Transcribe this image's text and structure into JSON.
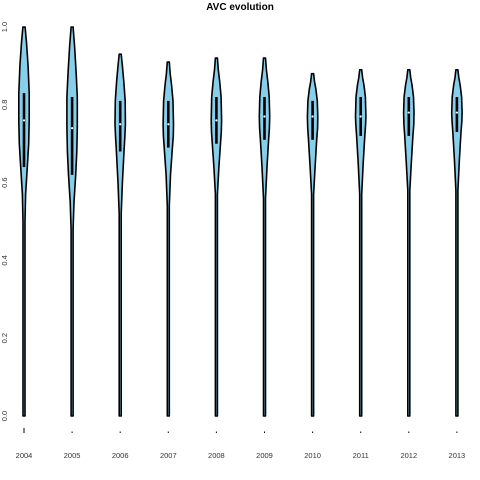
{
  "chart_data": {
    "type": "violin",
    "title": "AVC evolution",
    "xlabel": "",
    "ylabel": "",
    "categories": [
      "2004",
      "2005",
      "2006",
      "2007",
      "2008",
      "2009",
      "2010",
      "2011",
      "2012",
      "2013"
    ],
    "ylim": [
      0,
      1
    ],
    "yticks": [
      "0.0",
      "0.2",
      "0.4",
      "0.6",
      "0.8",
      "1.0"
    ],
    "grid": false,
    "legend": "none",
    "fill_color": "#87ceeb",
    "series": [
      {
        "category": "2004",
        "min": 0.0,
        "q1": 0.64,
        "median": 0.76,
        "q3": 0.83,
        "max": 1.0,
        "density": {
          "y": [
            0.0,
            0.45,
            0.5,
            0.57,
            0.64,
            0.7,
            0.76,
            0.83,
            0.9,
            0.96,
            1.0
          ],
          "w": [
            0.04,
            0.05,
            0.12,
            0.3,
            0.6,
            0.85,
            0.95,
            0.95,
            0.75,
            0.45,
            0.2
          ]
        }
      },
      {
        "category": "2005",
        "min": 0.0,
        "q1": 0.62,
        "median": 0.74,
        "q3": 0.82,
        "max": 1.0,
        "density": {
          "y": [
            0.0,
            0.46,
            0.48,
            0.55,
            0.62,
            0.68,
            0.74,
            0.82,
            0.88,
            0.95,
            1.0
          ],
          "w": [
            0.04,
            0.05,
            0.12,
            0.35,
            0.65,
            0.85,
            0.95,
            0.95,
            0.75,
            0.45,
            0.15
          ]
        }
      },
      {
        "category": "2006",
        "min": 0.0,
        "q1": 0.68,
        "median": 0.75,
        "q3": 0.81,
        "max": 0.93,
        "density": {
          "y": [
            0.0,
            0.5,
            0.52,
            0.6,
            0.68,
            0.72,
            0.75,
            0.81,
            0.86,
            0.9,
            0.93
          ],
          "w": [
            0.04,
            0.05,
            0.12,
            0.4,
            0.7,
            0.85,
            0.95,
            0.9,
            0.65,
            0.4,
            0.12
          ]
        }
      },
      {
        "category": "2007",
        "min": 0.0,
        "q1": 0.69,
        "median": 0.75,
        "q3": 0.81,
        "max": 0.91,
        "density": {
          "y": [
            0.0,
            0.52,
            0.54,
            0.62,
            0.69,
            0.72,
            0.75,
            0.81,
            0.85,
            0.88,
            0.91
          ],
          "w": [
            0.04,
            0.05,
            0.12,
            0.4,
            0.75,
            0.9,
            0.95,
            0.85,
            0.6,
            0.35,
            0.12
          ]
        }
      },
      {
        "category": "2008",
        "min": 0.0,
        "q1": 0.7,
        "median": 0.76,
        "q3": 0.82,
        "max": 0.92,
        "density": {
          "y": [
            0.0,
            0.55,
            0.57,
            0.64,
            0.7,
            0.73,
            0.76,
            0.82,
            0.86,
            0.89,
            0.92
          ],
          "w": [
            0.04,
            0.05,
            0.12,
            0.45,
            0.75,
            0.9,
            0.95,
            0.85,
            0.6,
            0.35,
            0.12
          ]
        }
      },
      {
        "category": "2009",
        "min": 0.0,
        "q1": 0.71,
        "median": 0.77,
        "q3": 0.82,
        "max": 0.92,
        "density": {
          "y": [
            0.0,
            0.54,
            0.56,
            0.64,
            0.71,
            0.74,
            0.77,
            0.82,
            0.86,
            0.89,
            0.92
          ],
          "w": [
            0.04,
            0.05,
            0.12,
            0.45,
            0.75,
            0.9,
            0.95,
            0.85,
            0.6,
            0.35,
            0.12
          ]
        }
      },
      {
        "category": "2010",
        "min": 0.0,
        "q1": 0.71,
        "median": 0.77,
        "q3": 0.81,
        "max": 0.88,
        "density": {
          "y": [
            0.0,
            0.55,
            0.57,
            0.64,
            0.71,
            0.74,
            0.77,
            0.81,
            0.84,
            0.86,
            0.88
          ],
          "w": [
            0.04,
            0.05,
            0.12,
            0.45,
            0.75,
            0.9,
            0.95,
            0.85,
            0.6,
            0.35,
            0.12
          ]
        }
      },
      {
        "category": "2011",
        "min": 0.0,
        "q1": 0.72,
        "median": 0.77,
        "q3": 0.82,
        "max": 0.89,
        "density": {
          "y": [
            0.0,
            0.55,
            0.57,
            0.65,
            0.72,
            0.75,
            0.77,
            0.82,
            0.85,
            0.87,
            0.89
          ],
          "w": [
            0.04,
            0.05,
            0.12,
            0.45,
            0.75,
            0.9,
            0.95,
            0.85,
            0.6,
            0.35,
            0.12
          ]
        }
      },
      {
        "category": "2012",
        "min": 0.0,
        "q1": 0.72,
        "median": 0.78,
        "q3": 0.82,
        "max": 0.89,
        "density": {
          "y": [
            0.0,
            0.56,
            0.58,
            0.65,
            0.72,
            0.75,
            0.78,
            0.82,
            0.85,
            0.87,
            0.89
          ],
          "w": [
            0.04,
            0.05,
            0.12,
            0.45,
            0.75,
            0.9,
            0.95,
            0.85,
            0.6,
            0.35,
            0.12
          ]
        }
      },
      {
        "category": "2013",
        "min": 0.0,
        "q1": 0.73,
        "median": 0.78,
        "q3": 0.82,
        "max": 0.89,
        "density": {
          "y": [
            0.0,
            0.56,
            0.58,
            0.66,
            0.73,
            0.76,
            0.78,
            0.82,
            0.85,
            0.87,
            0.89
          ],
          "w": [
            0.04,
            0.05,
            0.12,
            0.45,
            0.75,
            0.9,
            0.95,
            0.85,
            0.6,
            0.35,
            0.12
          ]
        }
      }
    ]
  }
}
